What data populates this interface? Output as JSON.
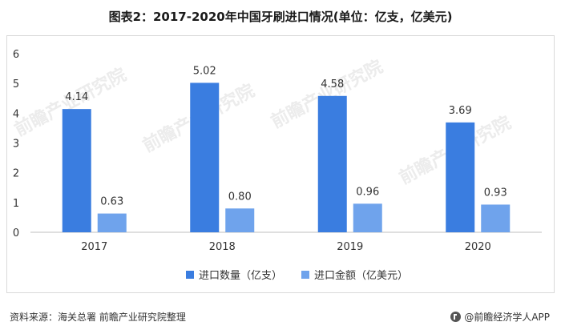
{
  "chart_data": {
    "type": "bar",
    "title": "图表2：2017-2020年中国牙刷进口情况(单位：亿支，亿美元)",
    "categories": [
      "2017",
      "2018",
      "2019",
      "2020"
    ],
    "series": [
      {
        "name": "进口数量（亿支）",
        "values": [
          4.14,
          5.02,
          4.58,
          3.69
        ],
        "color": "#3a7de0"
      },
      {
        "name": "进口金额（亿美元）",
        "values": [
          0.63,
          0.8,
          0.96,
          0.93
        ],
        "color": "#6fa3ec"
      }
    ],
    "ylim": [
      0,
      6
    ],
    "yticks": [
      0,
      1,
      2,
      3,
      4,
      5,
      6
    ],
    "grid": false,
    "legend_position": "bottom"
  },
  "footer": {
    "source": "资料来源：海关总署 前瞻产业研究院整理",
    "brand": "@前瞻经济学人APP"
  },
  "watermark": {
    "text": "前瞻产业研究院"
  }
}
